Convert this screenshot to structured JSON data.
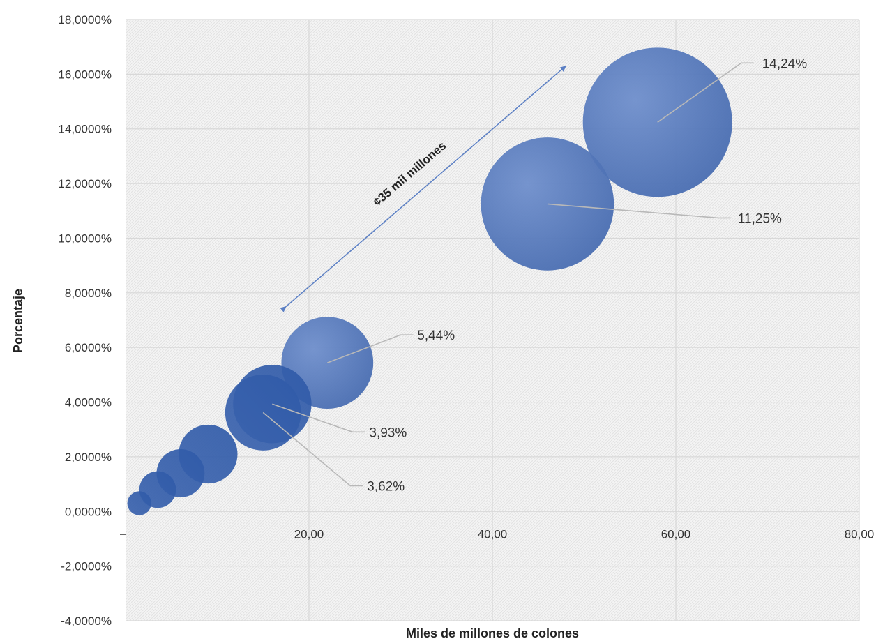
{
  "chart_data": {
    "type": "bubble",
    "xlabel": "Miles de millones de colones",
    "ylabel": "Porcentaje",
    "xlim": [
      0,
      80
    ],
    "ylim": [
      -4,
      18
    ],
    "x_ticks": [
      {
        "value": 20,
        "label": "20,00"
      },
      {
        "value": 40,
        "label": "40,00"
      },
      {
        "value": 60,
        "label": "60,00"
      },
      {
        "value": 80,
        "label": "80,00"
      }
    ],
    "y_ticks": [
      {
        "value": 18,
        "label": "18,0000%"
      },
      {
        "value": 16,
        "label": "16,0000%"
      },
      {
        "value": 14,
        "label": "14,0000%"
      },
      {
        "value": 12,
        "label": "12,0000%"
      },
      {
        "value": 10,
        "label": "10,0000%"
      },
      {
        "value": 8,
        "label": "8,0000%"
      },
      {
        "value": 6,
        "label": "6,0000%"
      },
      {
        "value": 4,
        "label": "4,0000%"
      },
      {
        "value": 2,
        "label": "2,0000%"
      },
      {
        "value": 0,
        "label": "0,0000%"
      },
      {
        "value": -2,
        "label": "-2,0000%"
      },
      {
        "value": -4,
        "label": "-4,0000%"
      }
    ],
    "grid": true,
    "bubble_color": "#4a72b8",
    "bubbles": [
      {
        "x": 58.0,
        "y": 14.24,
        "size": 58.0,
        "label": "14,24%"
      },
      {
        "x": 46.0,
        "y": 11.25,
        "size": 46.0,
        "label": "11,25%"
      },
      {
        "x": 22.0,
        "y": 5.44,
        "size": 22.0,
        "label": "5,44%"
      },
      {
        "x": 16.0,
        "y": 3.93,
        "size": 16.0,
        "label": "3,93%"
      },
      {
        "x": 15.0,
        "y": 3.62,
        "size": 15.0,
        "label": "3,62%"
      },
      {
        "x": 9.0,
        "y": 2.1,
        "size": 9.0,
        "label": ""
      },
      {
        "x": 6.0,
        "y": 1.4,
        "size": 6.0,
        "label": ""
      },
      {
        "x": 3.5,
        "y": 0.8,
        "size": 3.5,
        "label": ""
      },
      {
        "x": 1.5,
        "y": 0.3,
        "size": 1.5,
        "label": ""
      }
    ],
    "annotation": {
      "text": "¢35 mil millones",
      "from": {
        "x": 17.5,
        "y": 7.5
      },
      "to": {
        "x": 48.0,
        "y": 16.3
      }
    }
  }
}
